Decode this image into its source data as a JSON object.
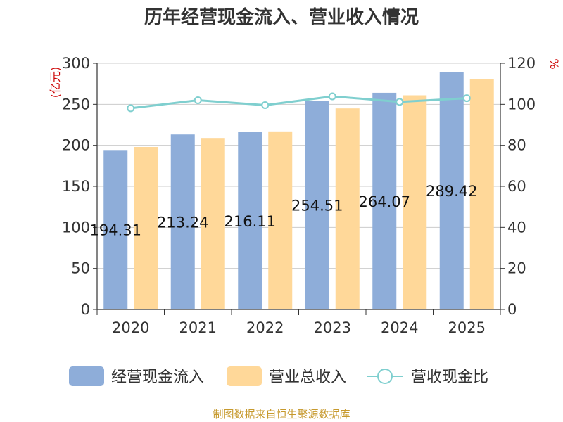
{
  "chart_data": {
    "type": "bar",
    "title": "历年经营现金流入、营业收入情况",
    "categories": [
      "2020",
      "2021",
      "2022",
      "2023",
      "2024",
      "2025"
    ],
    "series": [
      {
        "name": "经营现金流入",
        "type": "bar",
        "axis": "left",
        "color": "#8eadd9",
        "values": [
          194.31,
          213.24,
          216.11,
          254.51,
          264.07,
          289.42
        ],
        "labels": [
          "194.31",
          "213.24",
          "216.11",
          "254.51",
          "264.07",
          "289.42"
        ]
      },
      {
        "name": "营业总收入",
        "type": "bar",
        "axis": "left",
        "color": "#ffd899",
        "values": [
          198,
          209,
          217,
          245,
          261,
          281
        ]
      },
      {
        "name": "营收现金比",
        "type": "line",
        "axis": "right",
        "color": "#7fcfcf",
        "values": [
          98.1,
          102.0,
          99.6,
          103.9,
          101.2,
          103.0
        ]
      }
    ],
    "y_left": {
      "unit": "(亿元)",
      "ylim": [
        0,
        300
      ],
      "ticks": [
        "0",
        "50",
        "100",
        "150",
        "200",
        "250",
        "300"
      ]
    },
    "y_right": {
      "unit": "%",
      "ylim": [
        0,
        120
      ],
      "ticks": [
        "0",
        "20",
        "40",
        "60",
        "80",
        "100",
        "120"
      ]
    },
    "grid": true,
    "legend_position": "bottom"
  },
  "source_note": "制图数据来自恒生聚源数据库"
}
